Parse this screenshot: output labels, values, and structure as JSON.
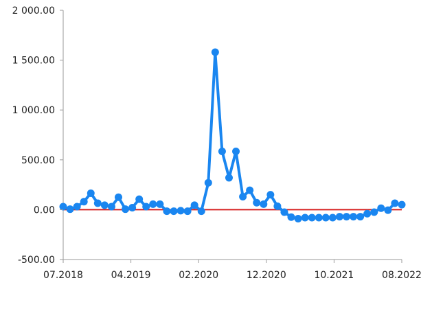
{
  "chart_data": {
    "type": "line",
    "title": "",
    "xlabel": "",
    "ylabel": "",
    "x_tick_labels": [
      "07.2018",
      "04.2019",
      "02.2020",
      "12.2020",
      "10.2021",
      "08.2022"
    ],
    "y_tick_labels": [
      "2 000.00",
      "1 500.00",
      "1 000.00",
      "500.00",
      "0.00",
      "-500.00"
    ],
    "y_ticks": [
      2000,
      1500,
      1000,
      500,
      0,
      -500
    ],
    "ylim": [
      -500,
      2000
    ],
    "grid": false,
    "legend": "none",
    "reference_line": {
      "y": 0,
      "color": "#d62020"
    },
    "series": [
      {
        "color": "#1a86f0",
        "values": [
          30,
          5,
          30,
          80,
          165,
          65,
          45,
          30,
          125,
          5,
          20,
          105,
          30,
          55,
          55,
          -15,
          -15,
          -10,
          -15,
          45,
          -15,
          270,
          1580,
          585,
          320,
          585,
          130,
          195,
          70,
          55,
          150,
          35,
          -25,
          -75,
          -90,
          -80,
          -80,
          -80,
          -80,
          -80,
          -70,
          -70,
          -70,
          -70,
          -40,
          -25,
          15,
          -5,
          65,
          50
        ]
      }
    ]
  }
}
